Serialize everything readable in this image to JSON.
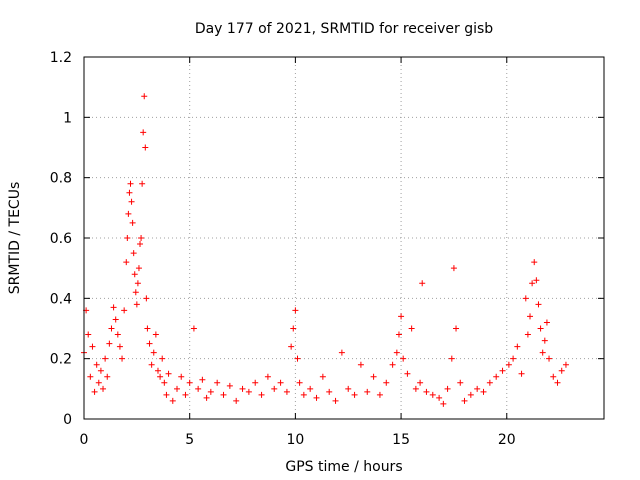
{
  "chart_data": {
    "type": "scatter",
    "title": "Day 177 of 2021, SRMTID for receiver gisb",
    "xlabel": "GPS time / hours",
    "ylabel": "SRMTID / TECUs",
    "xlim": [
      0,
      24.6
    ],
    "ylim": [
      0,
      1.2
    ],
    "xticks": [
      0,
      5,
      10,
      15,
      20
    ],
    "xtick_labels": [
      "0",
      "5",
      "10",
      "15",
      "20"
    ],
    "yticks": [
      0,
      0.2,
      0.4,
      0.6,
      0.8,
      1,
      1.2
    ],
    "ytick_labels": [
      "0",
      "0.2",
      "0.4",
      "0.6",
      "0.8",
      "1",
      "1.2"
    ],
    "grid": true,
    "marker": "+",
    "color": "#ff0000",
    "series": [
      {
        "name": "SRMTID",
        "x": [
          0.0,
          0.1,
          0.2,
          0.3,
          0.4,
          0.5,
          0.6,
          0.7,
          0.8,
          0.9,
          1.0,
          1.1,
          1.2,
          1.3,
          1.4,
          1.5,
          1.6,
          1.7,
          1.8,
          1.9,
          2.0,
          2.05,
          2.1,
          2.15,
          2.2,
          2.25,
          2.3,
          2.35,
          2.4,
          2.45,
          2.5,
          2.55,
          2.6,
          2.65,
          2.7,
          2.75,
          2.8,
          2.85,
          2.9,
          2.95,
          3.0,
          3.1,
          3.2,
          3.3,
          3.4,
          3.5,
          3.6,
          3.7,
          3.8,
          3.9,
          4.0,
          4.2,
          4.4,
          4.6,
          4.8,
          5.0,
          5.2,
          5.4,
          5.6,
          5.8,
          6.0,
          6.3,
          6.6,
          6.9,
          7.2,
          7.5,
          7.8,
          8.1,
          8.4,
          8.7,
          9.0,
          9.3,
          9.6,
          9.8,
          9.9,
          10.0,
          10.1,
          10.2,
          10.4,
          10.7,
          11.0,
          11.3,
          11.6,
          11.9,
          12.2,
          12.5,
          12.8,
          13.1,
          13.4,
          13.7,
          14.0,
          14.3,
          14.6,
          14.8,
          14.9,
          15.0,
          15.1,
          15.3,
          15.5,
          15.7,
          15.9,
          16.0,
          16.2,
          16.5,
          16.8,
          17.0,
          17.2,
          17.4,
          17.5,
          17.6,
          17.8,
          18.0,
          18.3,
          18.6,
          18.9,
          19.2,
          19.5,
          19.8,
          20.1,
          20.3,
          20.5,
          20.7,
          20.9,
          21.0,
          21.1,
          21.2,
          21.3,
          21.4,
          21.5,
          21.6,
          21.7,
          21.8,
          21.9,
          22.0,
          22.2,
          22.4,
          22.6,
          22.8
        ],
        "y": [
          0.22,
          0.36,
          0.28,
          0.14,
          0.24,
          0.09,
          0.18,
          0.12,
          0.16,
          0.1,
          0.2,
          0.14,
          0.25,
          0.3,
          0.37,
          0.33,
          0.28,
          0.24,
          0.2,
          0.36,
          0.52,
          0.6,
          0.68,
          0.75,
          0.78,
          0.72,
          0.65,
          0.55,
          0.48,
          0.42,
          0.38,
          0.45,
          0.5,
          0.58,
          0.6,
          0.78,
          0.95,
          1.07,
          0.9,
          0.4,
          0.3,
          0.25,
          0.18,
          0.22,
          0.28,
          0.16,
          0.14,
          0.2,
          0.12,
          0.08,
          0.15,
          0.06,
          0.1,
          0.14,
          0.08,
          0.12,
          0.3,
          0.1,
          0.13,
          0.07,
          0.09,
          0.12,
          0.08,
          0.11,
          0.06,
          0.1,
          0.09,
          0.12,
          0.08,
          0.14,
          0.1,
          0.12,
          0.09,
          0.24,
          0.3,
          0.36,
          0.2,
          0.12,
          0.08,
          0.1,
          0.07,
          0.14,
          0.09,
          0.06,
          0.22,
          0.1,
          0.08,
          0.18,
          0.09,
          0.14,
          0.08,
          0.12,
          0.18,
          0.22,
          0.28,
          0.34,
          0.2,
          0.15,
          0.3,
          0.1,
          0.12,
          0.45,
          0.09,
          0.08,
          0.07,
          0.05,
          0.1,
          0.2,
          0.5,
          0.3,
          0.12,
          0.06,
          0.08,
          0.1,
          0.09,
          0.12,
          0.14,
          0.16,
          0.18,
          0.2,
          0.24,
          0.15,
          0.4,
          0.28,
          0.34,
          0.45,
          0.52,
          0.46,
          0.38,
          0.3,
          0.22,
          0.26,
          0.32,
          0.2,
          0.14,
          0.12,
          0.16,
          0.18
        ]
      }
    ]
  }
}
